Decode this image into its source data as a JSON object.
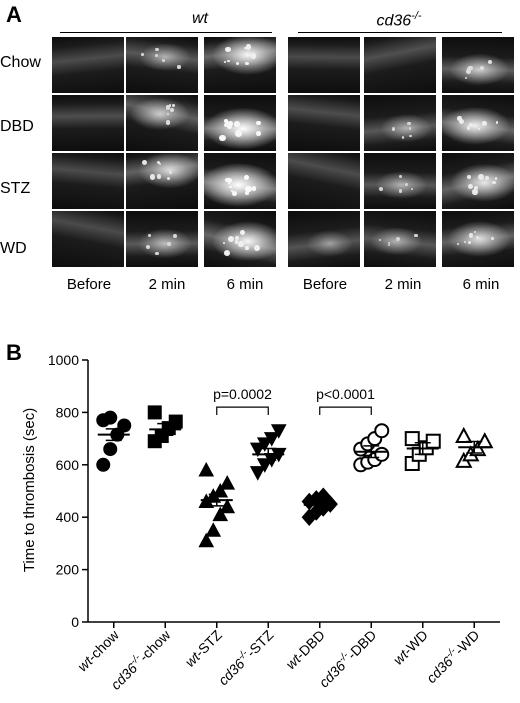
{
  "panel_a": {
    "letter": "A",
    "groups": [
      {
        "name": "wt"
      },
      {
        "name": "cd36",
        "sup": "-/-"
      }
    ],
    "rows": [
      "Chow",
      "DBD",
      "STZ",
      "WD"
    ],
    "columns": [
      "Before",
      "2 min",
      "6 min"
    ],
    "intensity": [
      [
        [
          0.15,
          0.45,
          0.85
        ],
        [
          0.12,
          0.25,
          0.6
        ]
      ],
      [
        [
          0.2,
          0.6,
          0.95
        ],
        [
          0.18,
          0.45,
          0.8
        ]
      ],
      [
        [
          0.15,
          0.7,
          1.0
        ],
        [
          0.15,
          0.45,
          0.75
        ]
      ],
      [
        [
          0.12,
          0.5,
          0.85
        ],
        [
          0.35,
          0.45,
          0.7
        ]
      ]
    ]
  },
  "panel_b": {
    "letter": "B",
    "chart_data": {
      "type": "scatter",
      "ylabel": "Time to thrombosis (sec)",
      "ylim": [
        0,
        1000
      ],
      "yticks": [
        0,
        200,
        400,
        600,
        800,
        1000
      ],
      "categories": [
        {
          "genotype": "wt",
          "sup": "",
          "condition": "-chow",
          "marker": "circle-filled",
          "mean": 715,
          "points": [
            600,
            660,
            715,
            750,
            770,
            780
          ]
        },
        {
          "genotype": "cd36",
          "sup": "-/-",
          "condition": "-chow",
          "marker": "square-filled",
          "mean": 735,
          "points": [
            690,
            710,
            740,
            765,
            800
          ]
        },
        {
          "genotype": "wt",
          "sup": "",
          "condition": "-STZ",
          "marker": "triangle-up-filled",
          "mean": 465,
          "points": [
            310,
            350,
            410,
            440,
            460,
            480,
            500,
            530,
            580
          ]
        },
        {
          "genotype": "cd36",
          "sup": "-/-",
          "condition": "-STZ",
          "marker": "triangle-down-filled",
          "mean": 640,
          "points": [
            570,
            600,
            620,
            640,
            660,
            680,
            700,
            730
          ]
        },
        {
          "genotype": "wt",
          "sup": "",
          "condition": "-DBD",
          "marker": "diamond-filled",
          "mean": 447,
          "points": [
            400,
            420,
            435,
            450,
            460,
            470,
            480
          ]
        },
        {
          "genotype": "cd36",
          "sup": "-/-",
          "condition": "-DBD",
          "marker": "circle-open",
          "mean": 650,
          "points": [
            600,
            610,
            620,
            640,
            660,
            680,
            700,
            730
          ]
        },
        {
          "genotype": "wt",
          "sup": "",
          "condition": "-WD",
          "marker": "square-open",
          "mean": 662,
          "points": [
            605,
            640,
            665,
            690,
            700
          ]
        },
        {
          "genotype": "cd36",
          "sup": "-/-",
          "condition": "-WD",
          "marker": "triangle-up-open",
          "mean": 667,
          "points": [
            615,
            640,
            660,
            690,
            710
          ]
        }
      ],
      "annotations": [
        {
          "text": "p=0.0002",
          "from": 2,
          "to": 3
        },
        {
          "text": "p<0.0001",
          "from": 4,
          "to": 5
        }
      ]
    }
  }
}
